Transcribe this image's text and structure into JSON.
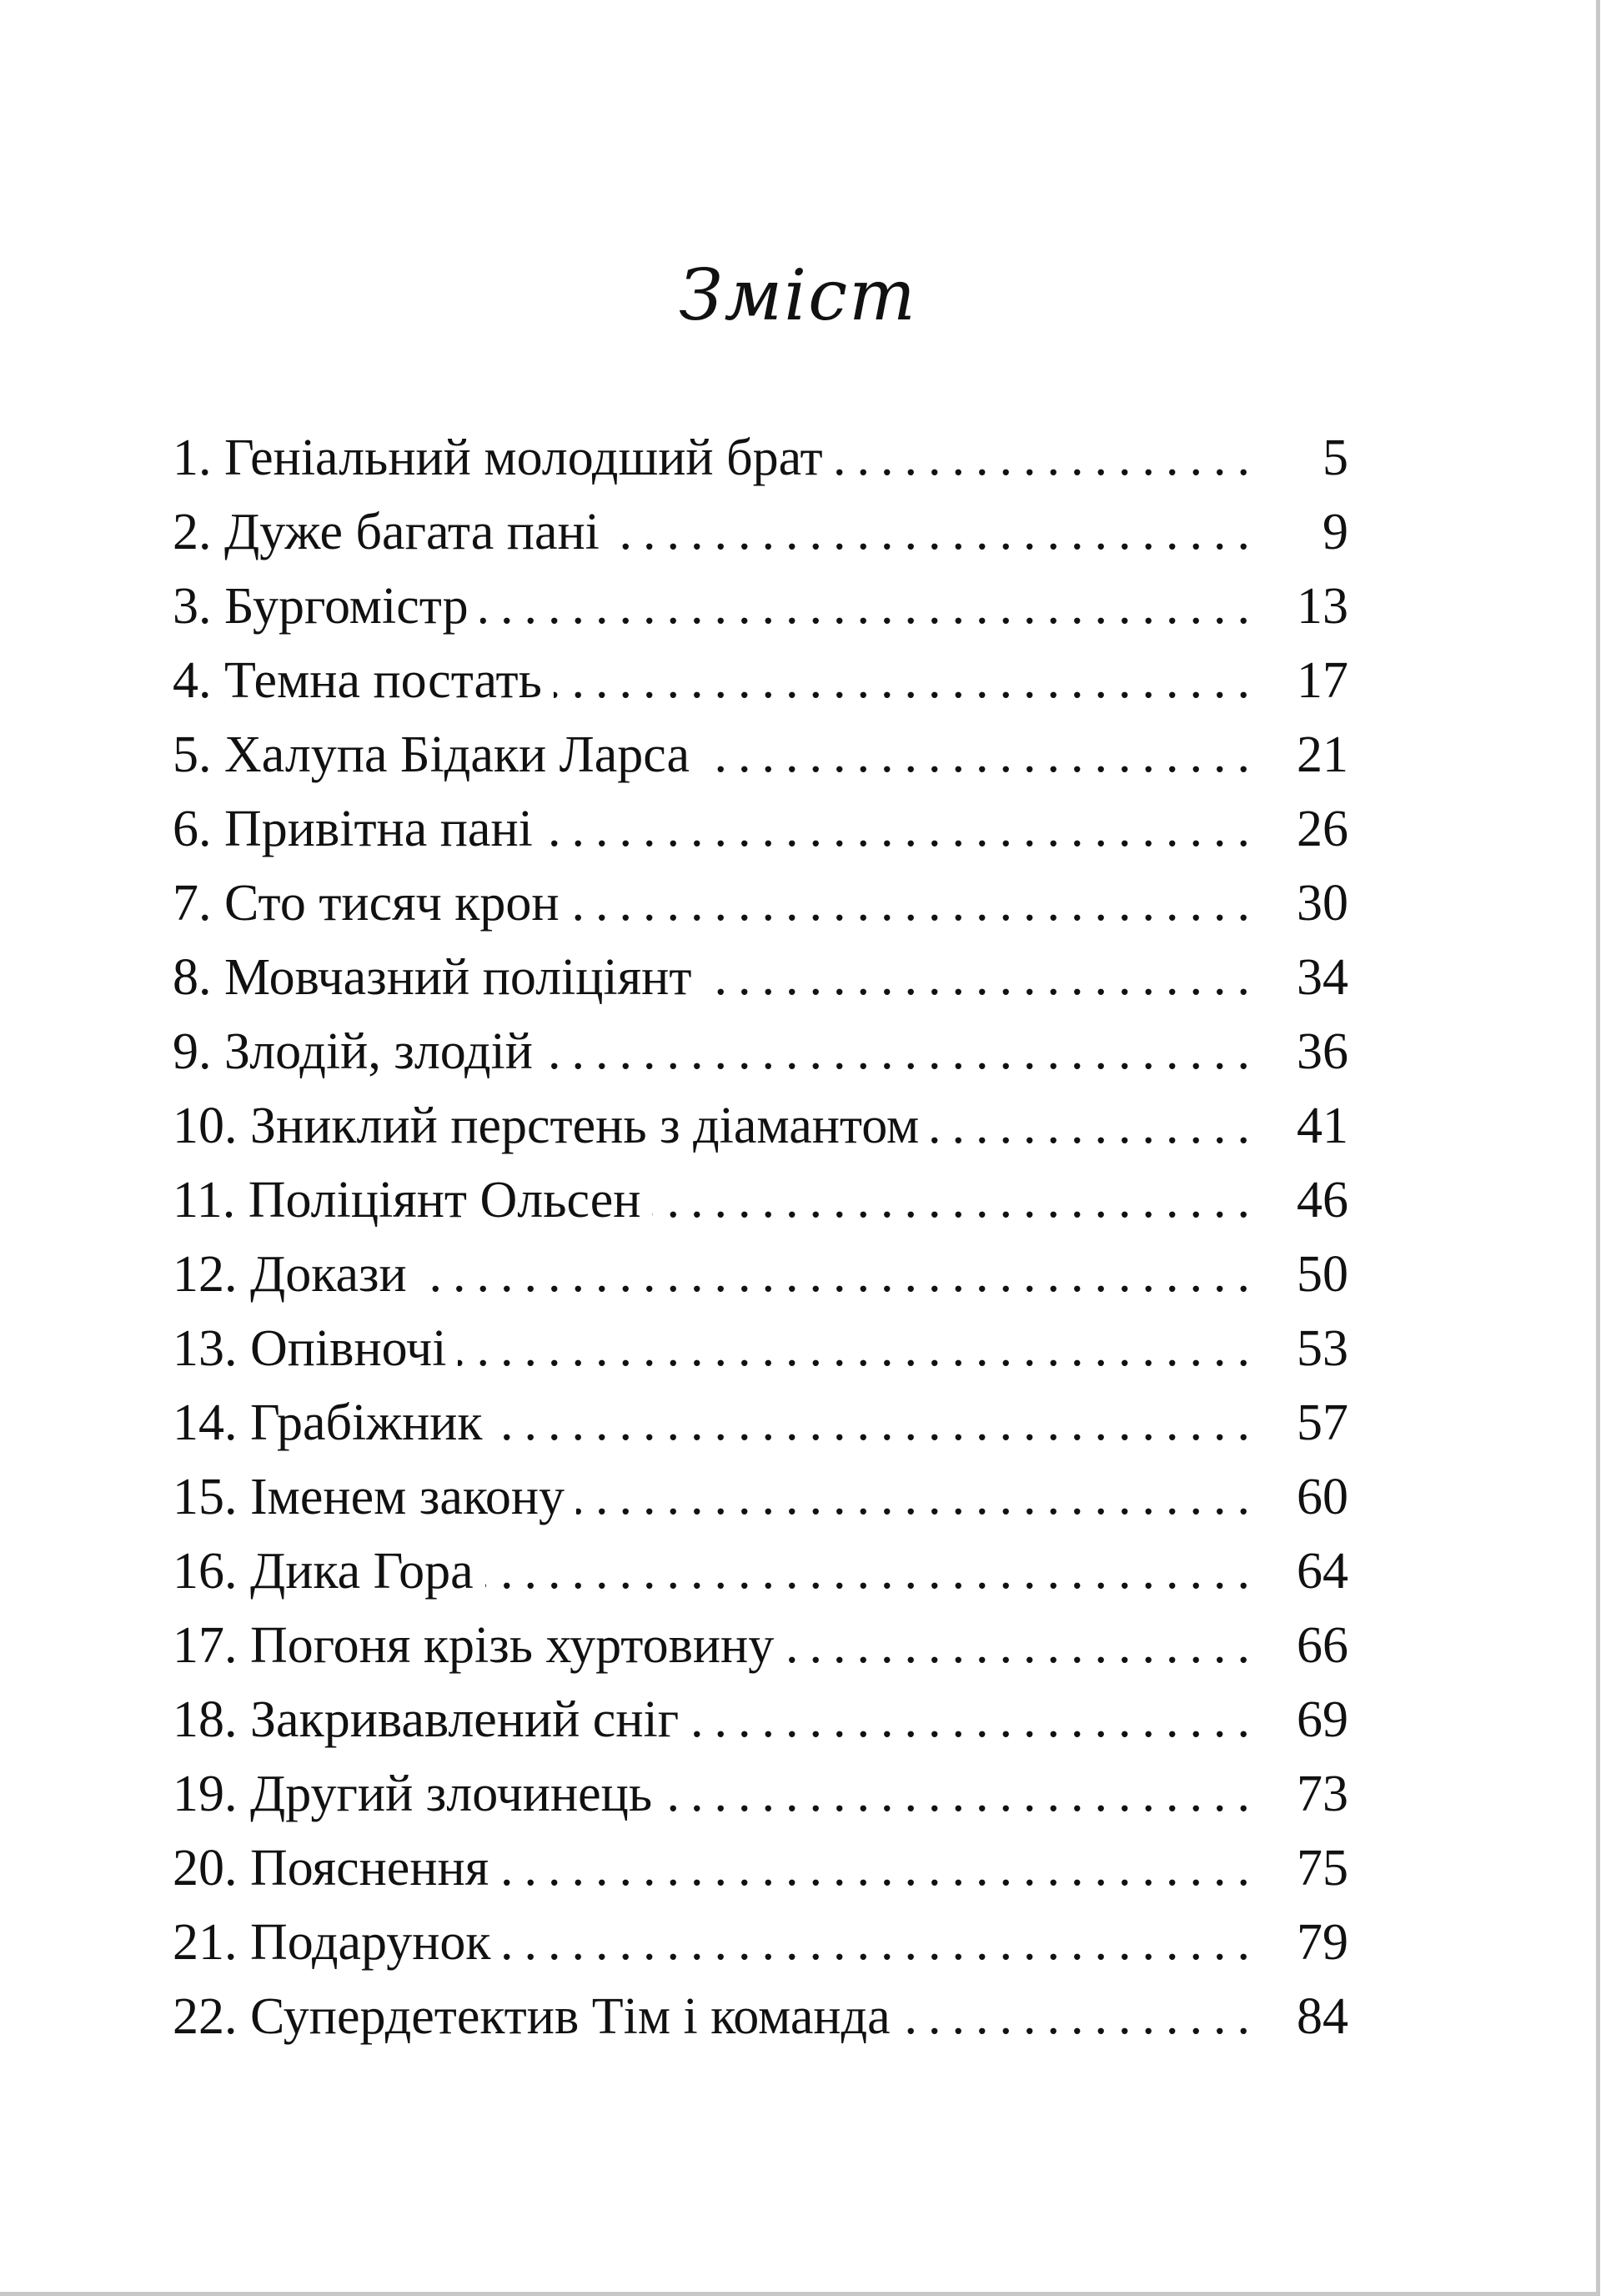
{
  "title": "Змiст",
  "entries": [
    {
      "label": "1. Геніальний молодший брат",
      "page": "5"
    },
    {
      "label": "2. Дуже багата пані",
      "page": "9"
    },
    {
      "label": "3. Бургомістр",
      "page": "13"
    },
    {
      "label": "4. Темна постать",
      "page": "17"
    },
    {
      "label": "5. Халупа Бідаки Ларса",
      "page": "21"
    },
    {
      "label": "6. Привітна пані",
      "page": "26"
    },
    {
      "label": "7. Сто тисяч крон",
      "page": "30"
    },
    {
      "label": "8. Мовчазний поліціянт",
      "page": "34"
    },
    {
      "label": "9. Злодій, злодій",
      "page": "36"
    },
    {
      "label": "10. Зниклий перстень з діамантом",
      "page": "41"
    },
    {
      "label": "11. Поліціянт Ольсен",
      "page": "46"
    },
    {
      "label": "12. Докази",
      "page": "50"
    },
    {
      "label": "13. Опівночі",
      "page": "53"
    },
    {
      "label": "14. Грабіжник",
      "page": "57"
    },
    {
      "label": "15. Іменем закону",
      "page": "60"
    },
    {
      "label": "16. Дика Гора",
      "page": "64"
    },
    {
      "label": "17. Погоня крізь хуртовину",
      "page": "66"
    },
    {
      "label": "18. Закривавлений сніг",
      "page": "69"
    },
    {
      "label": "19. Другий злочинець",
      "page": "73"
    },
    {
      "label": "20. Пояснення",
      "page": "75"
    },
    {
      "label": "21. Подарунок",
      "page": "79"
    },
    {
      "label": "22. Супердетектив Тім і команда",
      "page": "84"
    }
  ]
}
